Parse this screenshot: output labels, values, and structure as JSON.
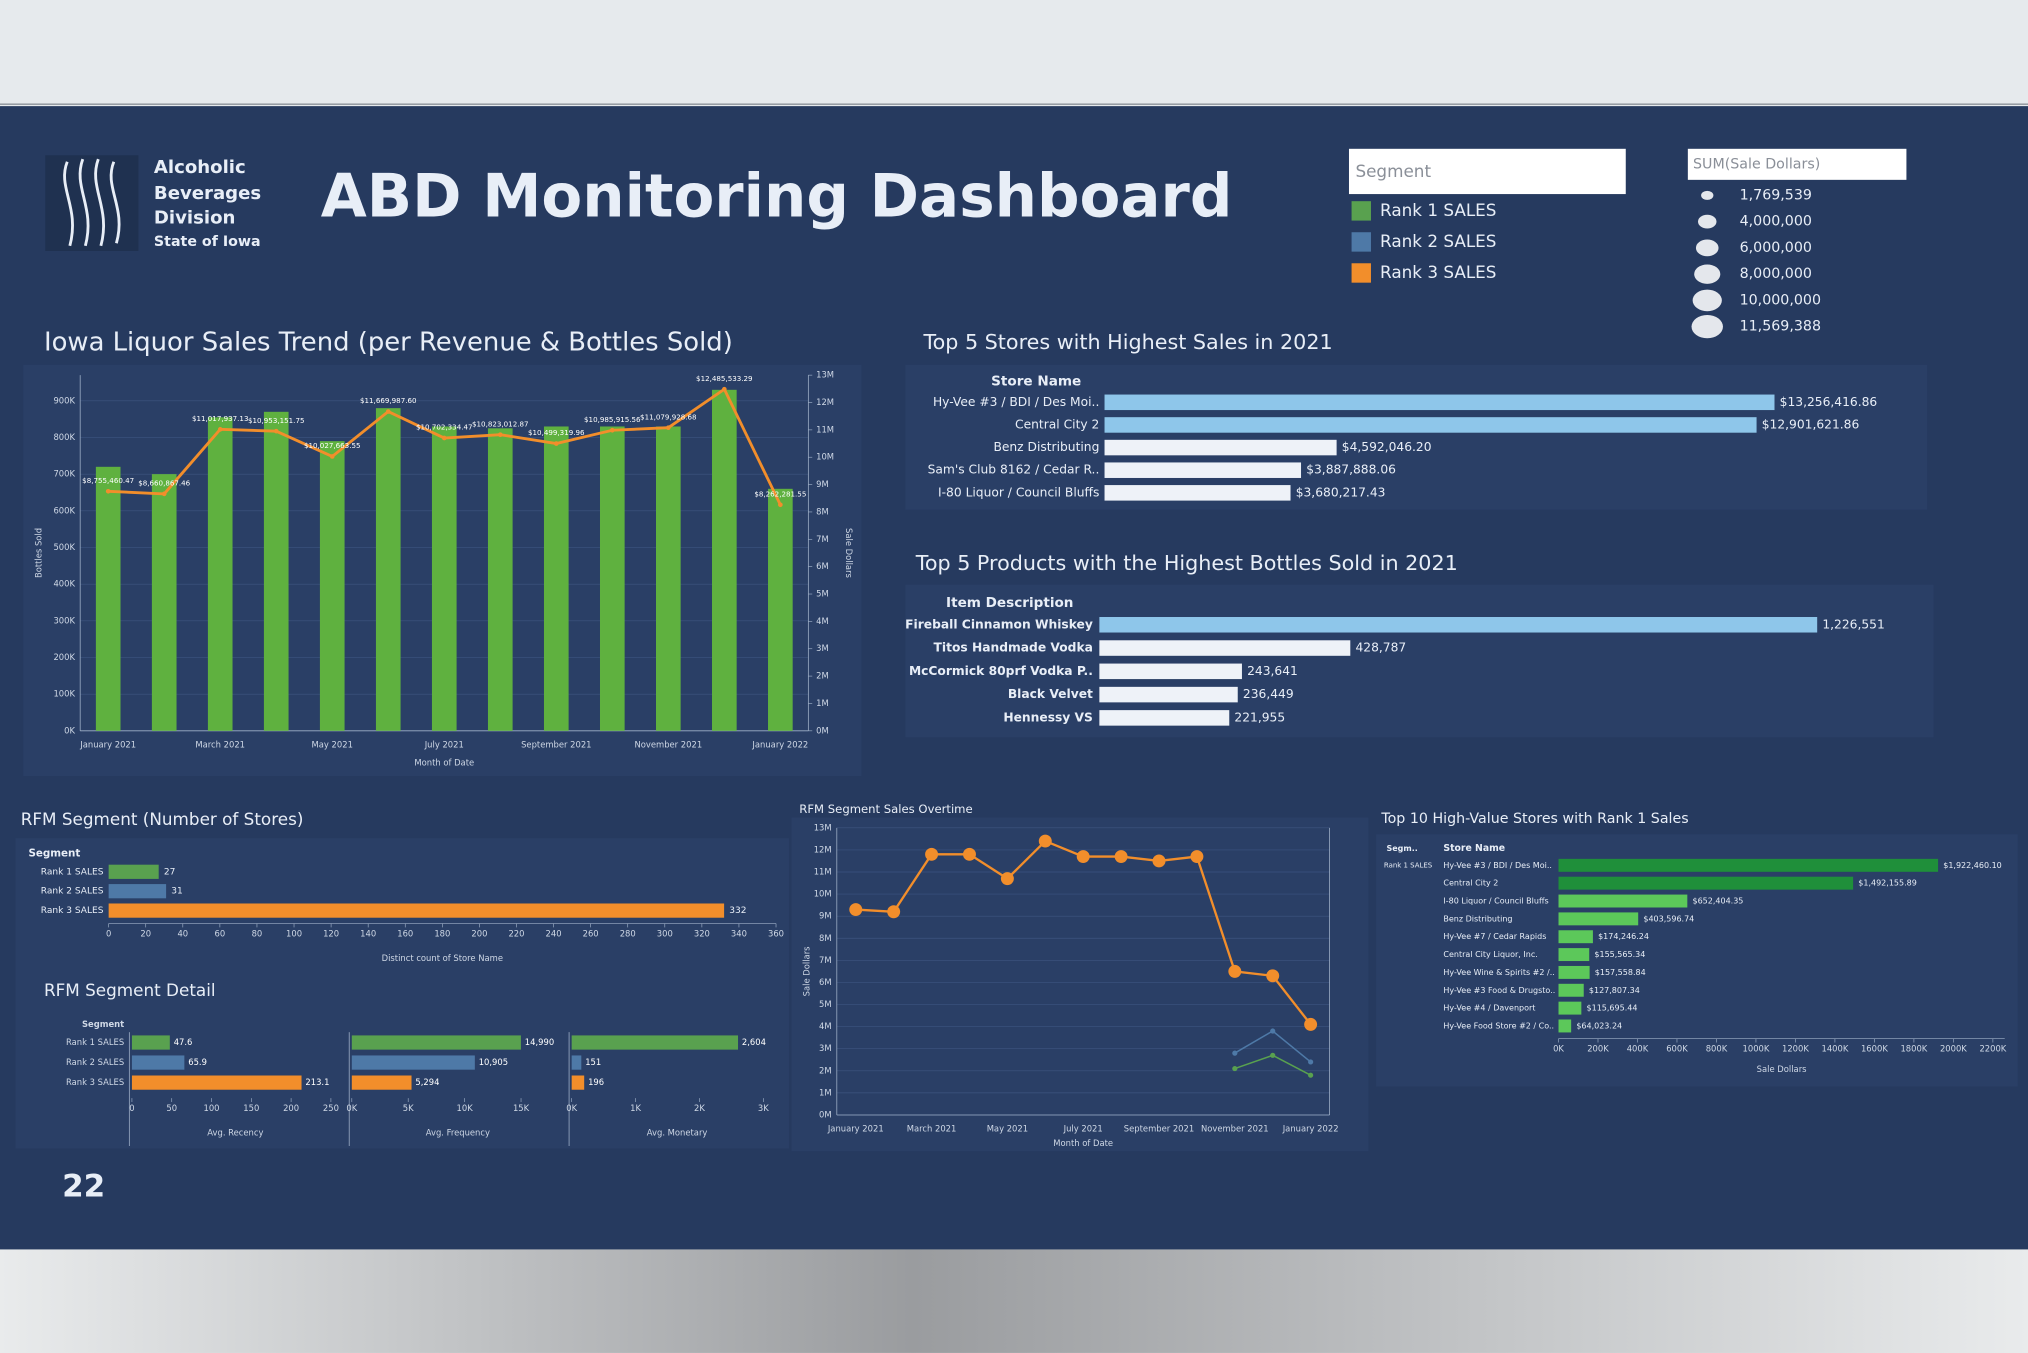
{
  "header": {
    "logo": [
      "Alcoholic",
      "Beverages",
      "Division",
      "State of Iowa"
    ],
    "title": "ABD Monitoring Dashboard",
    "page_number": "22"
  },
  "legends": {
    "segment": {
      "title": "Segment",
      "items": [
        {
          "name": "Rank 1 SALES",
          "color": "#59a14f"
        },
        {
          "name": "Rank 2 SALES",
          "color": "#4e79a7"
        },
        {
          "name": "Rank 3 SALES",
          "color": "#f28e2b"
        }
      ]
    },
    "size": {
      "title": "SUM(Sale Dollars)",
      "items": [
        {
          "value": 1769539,
          "label": "1,769,539"
        },
        {
          "value": 4000000,
          "label": "4,000,000"
        },
        {
          "value": 6000000,
          "label": "6,000,000"
        },
        {
          "value": 8000000,
          "label": "8,000,000"
        },
        {
          "value": 10000000,
          "label": "10,000,000"
        },
        {
          "value": 11569388,
          "label": "11,569,388"
        }
      ]
    }
  },
  "chart_data": [
    {
      "type": "combo",
      "title": "Iowa Liquor Sales Trend (per Revenue & Bottles Sold)",
      "categories": [
        "January 2021",
        null,
        "March 2021",
        null,
        "May 2021",
        null,
        "July 2021",
        null,
        "September 2021",
        null,
        "November 2021",
        null,
        "January 2022"
      ],
      "x_label": "Month of Date",
      "y_label": "Bottles Sold",
      "y2_label": "Sale Dollars",
      "ylim": [
        0,
        970000
      ],
      "yticks": [
        {
          "value": 0,
          "label": "0K"
        },
        {
          "value": 100000,
          "label": "100K"
        },
        {
          "value": 200000,
          "label": "200K"
        },
        {
          "value": 300000,
          "label": "300K"
        },
        {
          "value": 400000,
          "label": "400K"
        },
        {
          "value": 500000,
          "label": "500K"
        },
        {
          "value": 600000,
          "label": "600K"
        },
        {
          "value": 700000,
          "label": "700K"
        },
        {
          "value": 800000,
          "label": "800K"
        },
        {
          "value": 900000,
          "label": "900K"
        }
      ],
      "y2lim": [
        0,
        13000000
      ],
      "y2ticks": [
        {
          "value": 0,
          "label": "0M"
        },
        {
          "value": 1000000,
          "label": "1M"
        },
        {
          "value": 2000000,
          "label": "2M"
        },
        {
          "value": 3000000,
          "label": "3M"
        },
        {
          "value": 4000000,
          "label": "4M"
        },
        {
          "value": 5000000,
          "label": "5M"
        },
        {
          "value": 6000000,
          "label": "6M"
        },
        {
          "value": 7000000,
          "label": "7M"
        },
        {
          "value": 8000000,
          "label": "8M"
        },
        {
          "value": 9000000,
          "label": "9M"
        },
        {
          "value": 10000000,
          "label": "10M"
        },
        {
          "value": 11000000,
          "label": "11M"
        },
        {
          "value": 12000000,
          "label": "12M"
        },
        {
          "value": 13000000,
          "label": "13M"
        }
      ],
      "grid": true,
      "series": [
        {
          "type": "bar",
          "color": "#5fb13f",
          "values": [
            720000,
            700000,
            855000,
            870000,
            790000,
            880000,
            830000,
            825000,
            830000,
            830000,
            830000,
            930000,
            660000
          ]
        },
        {
          "type": "line",
          "axis": "y2",
          "color": "#f28e2b",
          "values": [
            8755460.47,
            8660867.46,
            11017937.13,
            10953151.75,
            10027663.55,
            11669987.6,
            10702334.47,
            10823012.87,
            10499319.96,
            10985915.56,
            11079928.68,
            12485533.29,
            8262281.55
          ],
          "value_labels": [
            "$8,755,460.47",
            "$8,660,867.46",
            "$11,017,937.13",
            "$10,953,151.75",
            "$10,027,663.55",
            "$11,669,987.60",
            "$10,702,334.47",
            "$10,823,012.87",
            "$10,499,319.96",
            "$10,985,915.56",
            "$11,079,928.68",
            "$12,485,533.29",
            "$8,262,281.55"
          ]
        }
      ]
    },
    {
      "type": "hbar",
      "title": "Top 5 Stores with Highest Sales in 2021",
      "header": "Store Name",
      "categories": [
        "Hy-Vee #3 / BDI / Des Moi..",
        "Central City 2",
        "Benz Distributing",
        "Sam's Club 8162 / Cedar R..",
        "I-80 Liquor / Council Bluffs"
      ],
      "values": [
        13256416.86,
        12901621.86,
        4592046.2,
        3887888.06,
        3680217.43
      ],
      "value_labels": [
        "$13,256,416.86",
        "$12,901,621.86",
        "$4,592,046.20",
        "$3,887,888.06",
        "$3,680,217.43"
      ],
      "colors": [
        "#8ec6ea",
        "#8ec6ea",
        "#eef2f8",
        "#eef2f8",
        "#eef2f8"
      ]
    },
    {
      "type": "hbar",
      "title": "Top 5 Products with the Highest Bottles Sold in 2021",
      "header": "Item Description",
      "categories": [
        "Fireball Cinnamon Whiskey",
        "Titos Handmade Vodka",
        "McCormick 80prf Vodka P..",
        "Black Velvet",
        "Hennessy VS"
      ],
      "values": [
        1226551,
        428787,
        243641,
        236449,
        221955
      ],
      "value_labels": [
        "1,226,551",
        "428,787",
        "243,641",
        "236,449",
        "221,955"
      ],
      "colors": [
        "#8ec6ea",
        "#eef2f8",
        "#eef2f8",
        "#eef2f8",
        "#eef2f8"
      ]
    },
    {
      "type": "hbar",
      "title": "RFM Segment (Number of Stores)",
      "header": "Segment",
      "categories": [
        "Rank 1 SALES",
        "Rank 2 SALES",
        "Rank 3 SALES"
      ],
      "values": [
        27,
        31,
        332
      ],
      "colors": [
        "#59a14f",
        "#4e79a7",
        "#f28e2b"
      ],
      "x_label": "Distinct count of Store Name",
      "xlim": [
        0,
        360
      ],
      "xticks": [
        0,
        20,
        40,
        60,
        80,
        100,
        120,
        140,
        160,
        180,
        200,
        220,
        240,
        260,
        280,
        300,
        320,
        340,
        360
      ]
    },
    {
      "type": "hbar-panels",
      "title": "RFM Segment Detail",
      "header": "Segment",
      "categories": [
        "Rank 1 SALES",
        "Rank 2 SALES",
        "Rank 3 SALES"
      ],
      "colors": [
        "#59a14f",
        "#4e79a7",
        "#f28e2b"
      ],
      "panels": [
        {
          "x_label": "Avg. Recency",
          "values": [
            47.6,
            65.9,
            213.1
          ],
          "xlim": [
            0,
            260
          ],
          "xticks": [
            0,
            50,
            100,
            150,
            200,
            250
          ]
        },
        {
          "x_label": "Avg. Frequency",
          "values": [
            14990,
            10905,
            5294
          ],
          "value_labels": [
            "14,990",
            "10,905",
            "5,294"
          ],
          "xlim": [
            0,
            18800
          ],
          "xticks": [
            {
              "value": 0,
              "label": "0K"
            },
            {
              "value": 5000,
              "label": "5K"
            },
            {
              "value": 10000,
              "label": "10K"
            },
            {
              "value": 15000,
              "label": "15K"
            }
          ]
        },
        {
          "x_label": "Avg. Monetary",
          "values": [
            2604,
            151,
            196
          ],
          "value_labels": [
            "2,604",
            "151",
            "196"
          ],
          "xlim": [
            0,
            3300
          ],
          "xticks": [
            {
              "value": 0,
              "label": "0K"
            },
            {
              "value": 1000,
              "label": "1K"
            },
            {
              "value": 2000,
              "label": "2K"
            },
            {
              "value": 3000,
              "label": "3K"
            }
          ]
        }
      ]
    },
    {
      "type": "line",
      "title": "RFM Segment Sales Overtime",
      "categories": [
        "January 2021",
        null,
        "March 2021",
        null,
        "May 2021",
        null,
        "July 2021",
        null,
        "September 2021",
        null,
        "November 2021",
        null,
        "January 2022"
      ],
      "x_label": "Month of Date",
      "y_label": "Sale Dollars",
      "ylim": [
        0,
        13000000
      ],
      "yticks": [
        {
          "value": 0,
          "label": "0M"
        },
        {
          "value": 1000000,
          "label": "1M"
        },
        {
          "value": 2000000,
          "label": "2M"
        },
        {
          "value": 3000000,
          "label": "3M"
        },
        {
          "value": 4000000,
          "label": "4M"
        },
        {
          "value": 5000000,
          "label": "5M"
        },
        {
          "value": 6000000,
          "label": "6M"
        },
        {
          "value": 7000000,
          "label": "7M"
        },
        {
          "value": 8000000,
          "label": "8M"
        },
        {
          "value": 9000000,
          "label": "9M"
        },
        {
          "value": 10000000,
          "label": "10M"
        },
        {
          "value": 11000000,
          "label": "11M"
        },
        {
          "value": 12000000,
          "label": "12M"
        },
        {
          "value": 13000000,
          "label": "13M"
        }
      ],
      "grid": true,
      "series": [
        {
          "color": "#f28e2b",
          "values": [
            9300000,
            9200000,
            11800000,
            11800000,
            10700000,
            12400000,
            11700000,
            11700000,
            11500000,
            11700000,
            6500000,
            6300000,
            4100000
          ]
        },
        {
          "color": "#4e79a7",
          "values": [
            null,
            null,
            null,
            null,
            null,
            null,
            null,
            null,
            null,
            null,
            2800000,
            3800000,
            2400000
          ]
        },
        {
          "color": "#59a14f",
          "values": [
            null,
            null,
            null,
            null,
            null,
            null,
            null,
            null,
            null,
            null,
            2100000,
            2700000,
            1800000
          ]
        }
      ]
    },
    {
      "type": "hbar",
      "title": "Top 10 High-Value Stores with Rank 1 Sales",
      "header": "Store Name",
      "group_header": "Segm..",
      "group": "Rank 1 SALES",
      "categories": [
        "Hy-Vee #3 / BDI / Des Moi..",
        "Central City 2",
        "I-80 Liquor / Council Bluffs",
        "Benz Distributing",
        "Hy-Vee #7 / Cedar Rapids",
        "Central City Liquor, Inc.",
        "Hy-Vee Wine & Spirits #2 /..",
        "Hy-Vee #3 Food & Drugsto..",
        "Hy-Vee #4 / Davenport",
        "Hy-Vee Food Store #2 / Co.."
      ],
      "values": [
        1922460.1,
        1492155.89,
        652404.35,
        403596.74,
        174246.24,
        155565.34,
        157558.84,
        127807.34,
        115695.44,
        64023.24
      ],
      "value_labels": [
        "$1,922,460.10",
        "$1,492,155.89",
        "$652,404.35",
        "$403,596.74",
        "$174,246.24",
        "$155,565.34",
        "$157,558.84",
        "$127,807.34",
        "$115,695.44",
        "$64,023.24"
      ],
      "colors": [
        "#1f8f3a",
        "#1f8f3a",
        "#5cc85a",
        "#5cc85a",
        "#5cc85a",
        "#5cc85a",
        "#5cc85a",
        "#5cc85a",
        "#5cc85a",
        "#5cc85a"
      ],
      "x_label": "Sale Dollars",
      "xlim": [
        0,
        2260000
      ],
      "xticks": [
        {
          "value": 0,
          "label": "0K"
        },
        {
          "value": 200000,
          "label": "200K"
        },
        {
          "value": 400000,
          "label": "400K"
        },
        {
          "value": 600000,
          "label": "600K"
        },
        {
          "value": 800000,
          "label": "800K"
        },
        {
          "value": 1000000,
          "label": "1000K"
        },
        {
          "value": 1200000,
          "label": "1200K"
        },
        {
          "value": 1400000,
          "label": "1400K"
        },
        {
          "value": 1600000,
          "label": "1600K"
        },
        {
          "value": 1800000,
          "label": "1800K"
        },
        {
          "value": 2000000,
          "label": "2000K"
        },
        {
          "value": 2200000,
          "label": "2200K"
        }
      ]
    }
  ]
}
